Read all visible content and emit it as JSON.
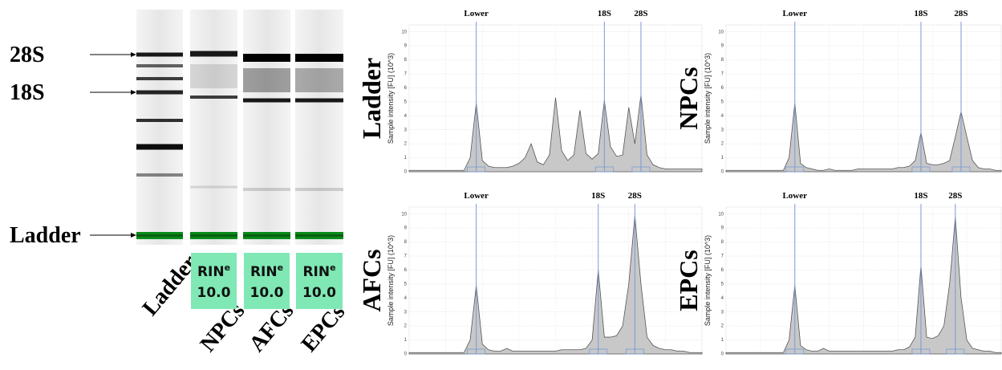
{
  "gel": {
    "band_labels": [
      "28S",
      "18S",
      "Ladder"
    ],
    "lanes": [
      "Ladder",
      "NPCs",
      "AFCs",
      "EPCs"
    ],
    "rin": [
      {
        "label": "RIN",
        "sup": "e",
        "value": {
          "value": 10,
          "label": "10.0"
        }
      },
      {
        "label": "RIN",
        "sup": "e",
        "value": {
          "value": 10,
          "label": "10.0"
        }
      },
      {
        "label": "RIN",
        "sup": "e",
        "value": {
          "value": 10,
          "label": "10.0"
        }
      }
    ]
  },
  "chart_data": [
    {
      "type": "area",
      "title": "Ladder",
      "y_label": "Sample intensity [FU] (10^3)",
      "color": "#c8c8c8",
      "grid": true,
      "ylim": [
        0,
        10.5
      ],
      "yticks": [
        0,
        1,
        2,
        3,
        4,
        5,
        6,
        7,
        8,
        9,
        10
      ],
      "values": [
        0.1,
        0.1,
        0.1,
        0.1,
        0.1,
        0.1,
        0.1,
        0.1,
        0.1,
        0.1,
        1.0,
        4.9,
        0.8,
        0.4,
        0.3,
        0.3,
        0.3,
        0.4,
        0.6,
        1.0,
        2.0,
        0.7,
        0.5,
        1.2,
        5.3,
        1.5,
        0.8,
        1.2,
        4.4,
        1.3,
        0.9,
        1.3,
        5.1,
        1.8,
        1.1,
        1.2,
        4.6,
        2.0,
        5.5,
        1.2,
        0.5,
        0.3,
        0.2,
        0.2,
        0.2,
        0.2,
        0.2,
        0.2,
        0.2
      ],
      "markers": [
        {
          "label": "Lower",
          "at": 11
        },
        {
          "label": "18S",
          "at": 32
        },
        {
          "label": "28S",
          "at": 38
        }
      ]
    },
    {
      "type": "area",
      "title": "NPCs",
      "y_label": "Sample intensity [FU] (10^3)",
      "color": "#c8c8c8",
      "grid": true,
      "ylim": [
        0,
        10.5
      ],
      "yticks": [
        0,
        1,
        2,
        3,
        4,
        5,
        6,
        7,
        8,
        9,
        10
      ],
      "values": [
        0.1,
        0.1,
        0.1,
        0.1,
        0.1,
        0.1,
        0.1,
        0.1,
        0.1,
        0.1,
        0.1,
        1.0,
        4.9,
        0.6,
        0.3,
        0.2,
        0.1,
        0.1,
        0.2,
        0.1,
        0.1,
        0.1,
        0.1,
        0.2,
        0.2,
        0.2,
        0.2,
        0.2,
        0.2,
        0.2,
        0.3,
        0.3,
        0.4,
        0.8,
        2.8,
        0.6,
        0.5,
        0.5,
        0.6,
        0.8,
        2.5,
        4.3,
        2.5,
        0.8,
        0.3,
        0.2,
        0.2,
        0.1,
        0.1
      ],
      "markers": [
        {
          "label": "Lower",
          "at": 12
        },
        {
          "label": "18S",
          "at": 34
        },
        {
          "label": "28S",
          "at": 41
        }
      ]
    },
    {
      "type": "area",
      "title": "AFCs",
      "y_label": "Sample intensity [FU] (10^3)",
      "color": "#c8c8c8",
      "grid": true,
      "ylim": [
        0,
        10.5
      ],
      "yticks": [
        0,
        1,
        2,
        3,
        4,
        5,
        6,
        7,
        8,
        9,
        10
      ],
      "values": [
        0.1,
        0.1,
        0.1,
        0.1,
        0.1,
        0.1,
        0.1,
        0.1,
        0.1,
        0.1,
        1.0,
        4.9,
        0.7,
        0.3,
        0.2,
        0.2,
        0.4,
        0.2,
        0.2,
        0.2,
        0.2,
        0.2,
        0.2,
        0.2,
        0.2,
        0.3,
        0.3,
        0.3,
        0.3,
        0.4,
        1.0,
        6.0,
        1.2,
        1.2,
        1.3,
        2.0,
        5.0,
        9.9,
        5.0,
        1.2,
        0.6,
        0.4,
        0.3,
        0.3,
        0.2,
        0.2,
        0.1,
        0.1,
        0.1
      ],
      "markers": [
        {
          "label": "Lower",
          "at": 11
        },
        {
          "label": "18S",
          "at": 31
        },
        {
          "label": "28S",
          "at": 37
        }
      ]
    },
    {
      "type": "area",
      "title": "EPCs",
      "y_label": "Sample intensity [FU] (10^3)",
      "color": "#c8c8c8",
      "grid": true,
      "ylim": [
        0,
        10.5
      ],
      "yticks": [
        0,
        1,
        2,
        3,
        4,
        5,
        6,
        7,
        8,
        9,
        10
      ],
      "values": [
        0.1,
        0.1,
        0.1,
        0.1,
        0.1,
        0.1,
        0.1,
        0.1,
        0.1,
        0.1,
        0.1,
        1.0,
        4.9,
        0.6,
        0.3,
        0.2,
        0.2,
        0.4,
        0.2,
        0.2,
        0.2,
        0.2,
        0.2,
        0.2,
        0.2,
        0.2,
        0.2,
        0.2,
        0.2,
        0.2,
        0.3,
        0.3,
        0.5,
        1.2,
        6.3,
        1.2,
        1.1,
        1.3,
        2.0,
        5.0,
        9.8,
        4.0,
        1.0,
        0.4,
        0.3,
        0.2,
        0.2,
        0.1,
        0.1
      ],
      "markers": [
        {
          "label": "Lower",
          "at": 12
        },
        {
          "label": "18S",
          "at": 34
        },
        {
          "label": "28S",
          "at": 40
        }
      ]
    }
  ]
}
